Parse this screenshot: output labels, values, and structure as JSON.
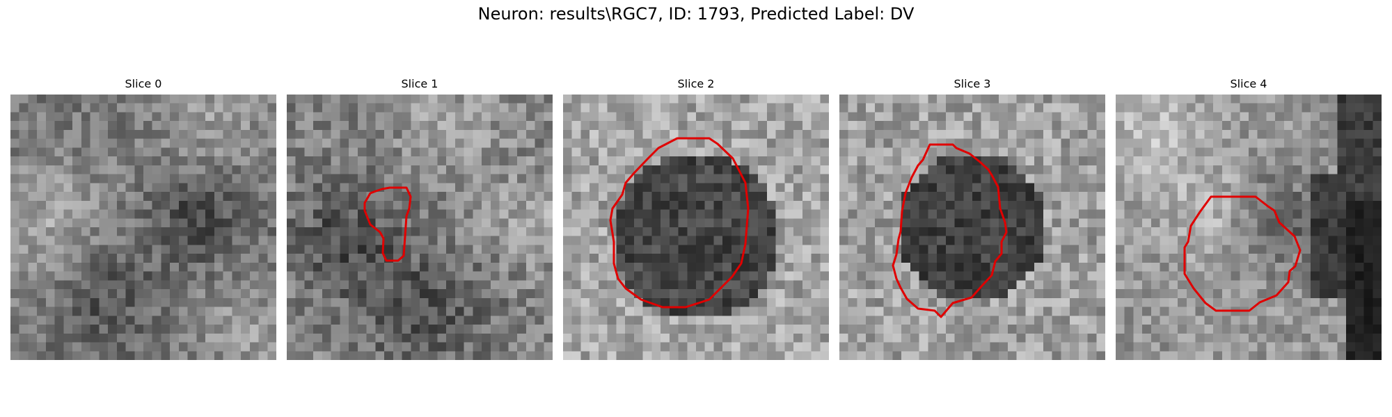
{
  "figure": {
    "title": "Neuron: results\\RGC7, ID: 1793, Predicted Label: DV"
  },
  "slices": [
    {
      "title": "Slice 0",
      "has_contour": false,
      "contour_color": "#e00000"
    },
    {
      "title": "Slice 1",
      "has_contour": true,
      "contour_color": "#e00000"
    },
    {
      "title": "Slice 2",
      "has_contour": true,
      "contour_color": "#e00000"
    },
    {
      "title": "Slice 3",
      "has_contour": true,
      "contour_color": "#e00000"
    },
    {
      "title": "Slice 4",
      "has_contour": true,
      "contour_color": "#e00000"
    }
  ]
}
